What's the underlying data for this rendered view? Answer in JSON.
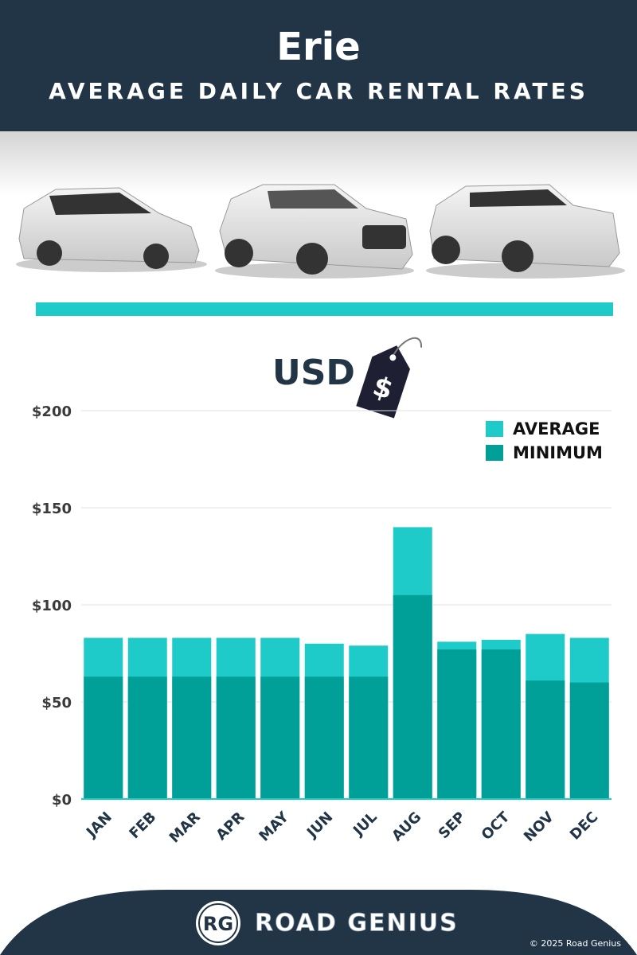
{
  "chart_data": {
    "type": "bar",
    "title": "Erie",
    "subtitle": "AVERAGE DAILY CAR RENTAL RATES",
    "unit_label": "USD",
    "currency_symbol": "$",
    "categories": [
      "JAN",
      "FEB",
      "MAR",
      "APR",
      "MAY",
      "JUN",
      "JUL",
      "AUG",
      "SEP",
      "OCT",
      "NOV",
      "DEC"
    ],
    "series": [
      {
        "name": "AVERAGE",
        "color": "#1fcbc8",
        "values": [
          83,
          83,
          83,
          83,
          83,
          80,
          79,
          140,
          81,
          82,
          85,
          83
        ]
      },
      {
        "name": "MINIMUM",
        "color": "#00a099",
        "values": [
          63,
          63,
          63,
          63,
          63,
          63,
          63,
          105,
          77,
          77,
          61,
          60
        ]
      }
    ],
    "ylim": [
      0,
      200
    ],
    "yticks": [
      {
        "value": 0,
        "label": "$0"
      },
      {
        "value": 50,
        "label": "$50"
      },
      {
        "value": 100,
        "label": "$100"
      },
      {
        "value": 150,
        "label": "$150"
      },
      {
        "value": 200,
        "label": "$200"
      }
    ],
    "grid": true,
    "legend": "top-right"
  },
  "footer": {
    "logo_mark": "RG",
    "brand": "ROAD GENIUS",
    "copyright": "© 2025 Road Genius"
  }
}
